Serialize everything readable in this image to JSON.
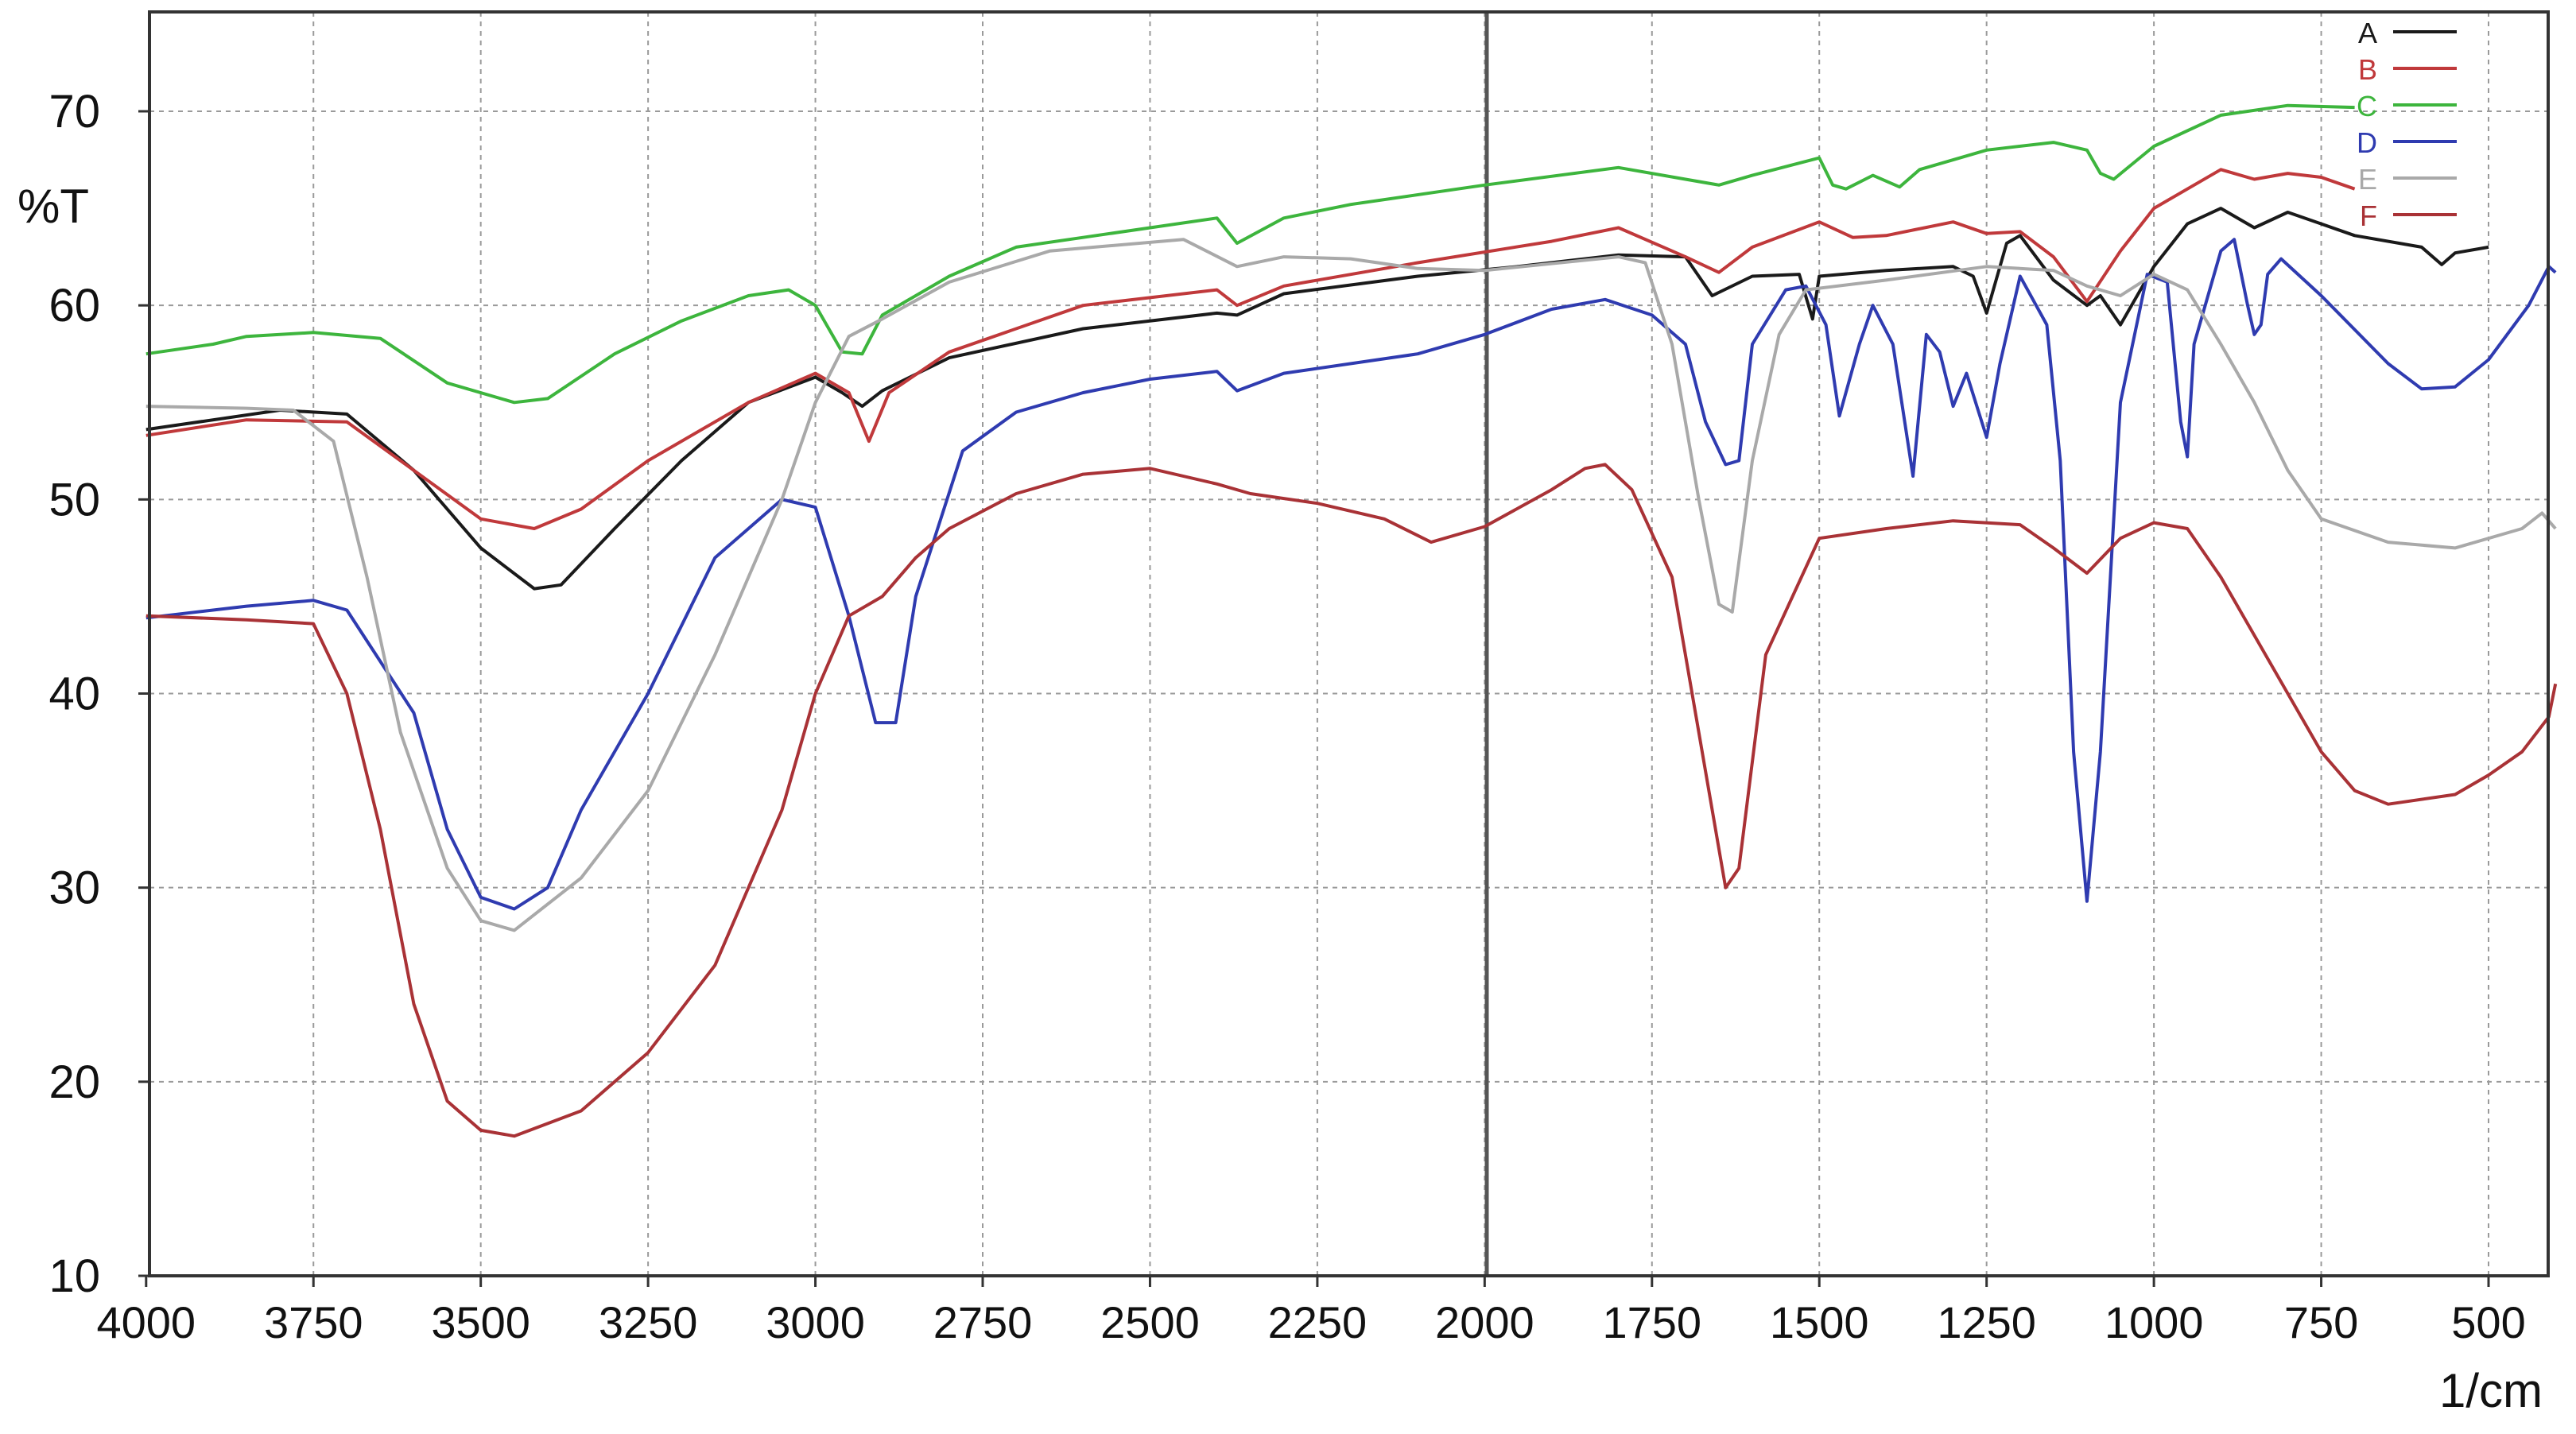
{
  "chart_data": {
    "type": "line",
    "title": "",
    "xlabel": "1/cm",
    "ylabel": "%T",
    "xlim": [
      4000,
      400
    ],
    "ylim": [
      10,
      75
    ],
    "x_reversed": true,
    "grid": true,
    "legend_position": "top-right",
    "x_ticks": [
      4000,
      3750,
      3500,
      3250,
      3000,
      2750,
      2500,
      2250,
      2000,
      1750,
      1500,
      1250,
      1000,
      750,
      500
    ],
    "y_ticks": [
      10,
      20,
      30,
      40,
      50,
      60,
      70
    ],
    "x_ticklabels": [
      "4000",
      "3750",
      "3500",
      "3250",
      "3000",
      "2750",
      "2500",
      "2250",
      "2000",
      "1750",
      "1500",
      "1250",
      "1000",
      "750",
      "500"
    ],
    "y_ticklabels": [
      "10",
      "20",
      "30",
      "40",
      "50",
      "60",
      "70"
    ],
    "series": [
      {
        "name": "A",
        "color": "#1a1a1a",
        "points": [
          [
            4000,
            53.6
          ],
          [
            3800,
            54.6
          ],
          [
            3700,
            54.4
          ],
          [
            3600,
            51.5
          ],
          [
            3500,
            47.5
          ],
          [
            3420,
            45.4
          ],
          [
            3380,
            45.6
          ],
          [
            3300,
            48.5
          ],
          [
            3200,
            52
          ],
          [
            3100,
            55
          ],
          [
            3000,
            56.3
          ],
          [
            2960,
            55.5
          ],
          [
            2930,
            54.8
          ],
          [
            2900,
            55.6
          ],
          [
            2800,
            57.3
          ],
          [
            2600,
            58.8
          ],
          [
            2400,
            59.6
          ],
          [
            2370,
            59.5
          ],
          [
            2300,
            60.6
          ],
          [
            2100,
            61.5
          ],
          [
            1950,
            62
          ],
          [
            1800,
            62.6
          ],
          [
            1700,
            62.5
          ],
          [
            1660,
            60.5
          ],
          [
            1600,
            61.5
          ],
          [
            1530,
            61.6
          ],
          [
            1510,
            59.3
          ],
          [
            1500,
            61.5
          ],
          [
            1400,
            61.8
          ],
          [
            1300,
            62
          ],
          [
            1270,
            61.5
          ],
          [
            1250,
            59.6
          ],
          [
            1220,
            63.2
          ],
          [
            1200,
            63.6
          ],
          [
            1150,
            61.3
          ],
          [
            1100,
            60
          ],
          [
            1080,
            60.5
          ],
          [
            1050,
            59
          ],
          [
            1000,
            62
          ],
          [
            950,
            64.2
          ],
          [
            900,
            65
          ],
          [
            850,
            64
          ],
          [
            800,
            64.8
          ],
          [
            750,
            64.2
          ],
          [
            700,
            63.6
          ],
          [
            600,
            63
          ],
          [
            570,
            62.1
          ],
          [
            550,
            62.7
          ],
          [
            500,
            63
          ]
        ]
      },
      {
        "name": "B",
        "color": "#c0393b",
        "points": [
          [
            4000,
            53.3
          ],
          [
            3850,
            54.1
          ],
          [
            3700,
            54
          ],
          [
            3600,
            51.5
          ],
          [
            3500,
            49
          ],
          [
            3420,
            48.5
          ],
          [
            3350,
            49.5
          ],
          [
            3250,
            52
          ],
          [
            3100,
            55
          ],
          [
            3000,
            56.5
          ],
          [
            2950,
            55.5
          ],
          [
            2920,
            53
          ],
          [
            2890,
            55.5
          ],
          [
            2800,
            57.6
          ],
          [
            2600,
            60
          ],
          [
            2400,
            60.8
          ],
          [
            2370,
            60
          ],
          [
            2300,
            61
          ],
          [
            2100,
            62.2
          ],
          [
            1900,
            63.3
          ],
          [
            1800,
            64
          ],
          [
            1700,
            62.5
          ],
          [
            1650,
            61.7
          ],
          [
            1600,
            63
          ],
          [
            1500,
            64.3
          ],
          [
            1450,
            63.5
          ],
          [
            1400,
            63.6
          ],
          [
            1300,
            64.3
          ],
          [
            1250,
            63.7
          ],
          [
            1200,
            63.8
          ],
          [
            1150,
            62.5
          ],
          [
            1100,
            60.2
          ],
          [
            1050,
            62.8
          ],
          [
            1000,
            65
          ],
          [
            900,
            67
          ],
          [
            850,
            66.5
          ],
          [
            800,
            66.8
          ],
          [
            750,
            66.6
          ],
          [
            700,
            66
          ]
        ]
      },
      {
        "name": "C",
        "color": "#3db53d",
        "points": [
          [
            4000,
            57.5
          ],
          [
            3900,
            58
          ],
          [
            3850,
            58.4
          ],
          [
            3750,
            58.6
          ],
          [
            3650,
            58.3
          ],
          [
            3550,
            56
          ],
          [
            3450,
            55
          ],
          [
            3400,
            55.2
          ],
          [
            3300,
            57.5
          ],
          [
            3200,
            59.2
          ],
          [
            3100,
            60.5
          ],
          [
            3040,
            60.8
          ],
          [
            3000,
            60
          ],
          [
            2960,
            57.6
          ],
          [
            2930,
            57.5
          ],
          [
            2900,
            59.5
          ],
          [
            2800,
            61.5
          ],
          [
            2700,
            63
          ],
          [
            2600,
            63.5
          ],
          [
            2400,
            64.5
          ],
          [
            2370,
            63.2
          ],
          [
            2300,
            64.5
          ],
          [
            2200,
            65.2
          ],
          [
            2000,
            66.2
          ],
          [
            1800,
            67.1
          ],
          [
            1700,
            66.5
          ],
          [
            1650,
            66.2
          ],
          [
            1600,
            66.7
          ],
          [
            1500,
            67.6
          ],
          [
            1480,
            66.2
          ],
          [
            1460,
            66
          ],
          [
            1420,
            66.7
          ],
          [
            1380,
            66.1
          ],
          [
            1350,
            67
          ],
          [
            1250,
            68
          ],
          [
            1150,
            68.4
          ],
          [
            1100,
            68
          ],
          [
            1080,
            66.8
          ],
          [
            1060,
            66.5
          ],
          [
            1000,
            68.2
          ],
          [
            900,
            69.8
          ],
          [
            800,
            70.3
          ],
          [
            700,
            70.2
          ]
        ]
      },
      {
        "name": "D",
        "color": "#2f3bb0",
        "points": [
          [
            4000,
            43.9
          ],
          [
            3850,
            44.5
          ],
          [
            3750,
            44.8
          ],
          [
            3700,
            44.3
          ],
          [
            3600,
            39
          ],
          [
            3550,
            33
          ],
          [
            3500,
            29.5
          ],
          [
            3450,
            28.9
          ],
          [
            3400,
            30
          ],
          [
            3350,
            34
          ],
          [
            3250,
            40
          ],
          [
            3150,
            47
          ],
          [
            3050,
            50
          ],
          [
            3000,
            49.6
          ],
          [
            2950,
            44
          ],
          [
            2910,
            38.5
          ],
          [
            2880,
            38.5
          ],
          [
            2850,
            45
          ],
          [
            2780,
            52.5
          ],
          [
            2700,
            54.5
          ],
          [
            2600,
            55.5
          ],
          [
            2500,
            56.2
          ],
          [
            2400,
            56.6
          ],
          [
            2370,
            55.6
          ],
          [
            2300,
            56.5
          ],
          [
            2100,
            57.5
          ],
          [
            2000,
            58.5
          ],
          [
            1900,
            59.8
          ],
          [
            1820,
            60.3
          ],
          [
            1750,
            59.5
          ],
          [
            1700,
            58
          ],
          [
            1670,
            54
          ],
          [
            1640,
            51.8
          ],
          [
            1620,
            52
          ],
          [
            1600,
            58
          ],
          [
            1550,
            60.8
          ],
          [
            1520,
            61
          ],
          [
            1490,
            59
          ],
          [
            1470,
            54.3
          ],
          [
            1440,
            58
          ],
          [
            1420,
            60
          ],
          [
            1390,
            58
          ],
          [
            1360,
            51.2
          ],
          [
            1340,
            58.5
          ],
          [
            1320,
            57.6
          ],
          [
            1300,
            54.8
          ],
          [
            1280,
            56.5
          ],
          [
            1250,
            53.2
          ],
          [
            1230,
            57
          ],
          [
            1200,
            61.5
          ],
          [
            1160,
            59
          ],
          [
            1140,
            52
          ],
          [
            1120,
            37
          ],
          [
            1100,
            29.3
          ],
          [
            1080,
            37
          ],
          [
            1050,
            55
          ],
          [
            1010,
            61.6
          ],
          [
            980,
            61.2
          ],
          [
            960,
            54
          ],
          [
            950,
            52.2
          ],
          [
            940,
            58
          ],
          [
            900,
            62.8
          ],
          [
            880,
            63.4
          ],
          [
            860,
            60
          ],
          [
            850,
            58.5
          ],
          [
            840,
            59
          ],
          [
            830,
            61.6
          ],
          [
            810,
            62.4
          ],
          [
            750,
            60.5
          ],
          [
            650,
            57
          ],
          [
            600,
            55.7
          ],
          [
            550,
            55.8
          ],
          [
            500,
            57.2
          ],
          [
            440,
            60
          ],
          [
            410,
            62
          ],
          [
            400,
            61.7
          ]
        ]
      },
      {
        "name": "E",
        "color": "#a9a9a9",
        "points": [
          [
            4000,
            54.8
          ],
          [
            3850,
            54.7
          ],
          [
            3780,
            54.6
          ],
          [
            3720,
            53
          ],
          [
            3670,
            46
          ],
          [
            3620,
            38
          ],
          [
            3550,
            31
          ],
          [
            3500,
            28.3
          ],
          [
            3450,
            27.8
          ],
          [
            3350,
            30.5
          ],
          [
            3250,
            35
          ],
          [
            3150,
            42
          ],
          [
            3050,
            50
          ],
          [
            3000,
            55
          ],
          [
            2950,
            58.4
          ],
          [
            2900,
            59.3
          ],
          [
            2800,
            61.2
          ],
          [
            2650,
            62.8
          ],
          [
            2450,
            63.4
          ],
          [
            2370,
            62
          ],
          [
            2300,
            62.5
          ],
          [
            2200,
            62.4
          ],
          [
            2100,
            61.9
          ],
          [
            2000,
            61.8
          ],
          [
            1800,
            62.5
          ],
          [
            1760,
            62.2
          ],
          [
            1720,
            58
          ],
          [
            1680,
            50
          ],
          [
            1650,
            44.6
          ],
          [
            1630,
            44.2
          ],
          [
            1600,
            52
          ],
          [
            1560,
            58.5
          ],
          [
            1520,
            60.8
          ],
          [
            1400,
            61.3
          ],
          [
            1250,
            62
          ],
          [
            1150,
            61.8
          ],
          [
            1100,
            61
          ],
          [
            1050,
            60.5
          ],
          [
            1000,
            61.6
          ],
          [
            950,
            60.8
          ],
          [
            900,
            58
          ],
          [
            850,
            55
          ],
          [
            800,
            51.5
          ],
          [
            750,
            49
          ],
          [
            650,
            47.8
          ],
          [
            550,
            47.5
          ],
          [
            450,
            48.5
          ],
          [
            420,
            49.3
          ],
          [
            400,
            48.5
          ]
        ]
      },
      {
        "name": "F",
        "color": "#a93236",
        "points": [
          [
            4000,
            44
          ],
          [
            3850,
            43.8
          ],
          [
            3750,
            43.6
          ],
          [
            3700,
            40
          ],
          [
            3650,
            33
          ],
          [
            3600,
            24
          ],
          [
            3550,
            19
          ],
          [
            3500,
            17.5
          ],
          [
            3450,
            17.2
          ],
          [
            3350,
            18.5
          ],
          [
            3250,
            21.5
          ],
          [
            3150,
            26
          ],
          [
            3050,
            34
          ],
          [
            3000,
            40
          ],
          [
            2950,
            44
          ],
          [
            2900,
            45
          ],
          [
            2850,
            47
          ],
          [
            2800,
            48.5
          ],
          [
            2700,
            50.3
          ],
          [
            2600,
            51.3
          ],
          [
            2500,
            51.6
          ],
          [
            2400,
            50.8
          ],
          [
            2350,
            50.3
          ],
          [
            2250,
            49.8
          ],
          [
            2150,
            49
          ],
          [
            2080,
            47.8
          ],
          [
            2000,
            48.6
          ],
          [
            1900,
            50.5
          ],
          [
            1850,
            51.6
          ],
          [
            1820,
            51.8
          ],
          [
            1780,
            50.5
          ],
          [
            1720,
            46
          ],
          [
            1680,
            38
          ],
          [
            1640,
            30
          ],
          [
            1620,
            31
          ],
          [
            1580,
            42
          ],
          [
            1500,
            48
          ],
          [
            1400,
            48.5
          ],
          [
            1300,
            48.9
          ],
          [
            1200,
            48.7
          ],
          [
            1150,
            47.5
          ],
          [
            1100,
            46.2
          ],
          [
            1050,
            48
          ],
          [
            1000,
            48.8
          ],
          [
            950,
            48.5
          ],
          [
            900,
            46
          ],
          [
            800,
            40
          ],
          [
            750,
            37
          ],
          [
            700,
            35
          ],
          [
            650,
            34.3
          ],
          [
            550,
            34.8
          ],
          [
            500,
            35.8
          ],
          [
            450,
            37
          ],
          [
            410,
            38.8
          ],
          [
            400,
            40.5
          ]
        ]
      }
    ]
  }
}
